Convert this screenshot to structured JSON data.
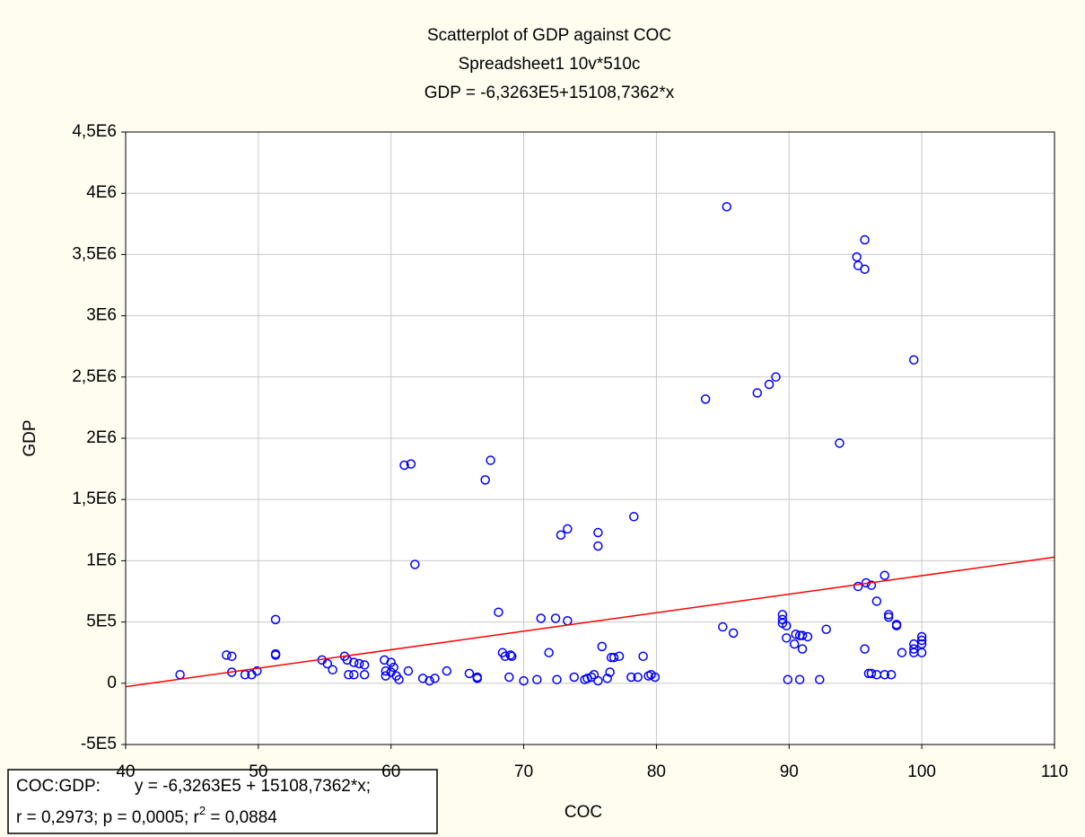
{
  "chart_data": {
    "type": "scatter",
    "title": "Scatterplot of GDP against COC",
    "subtitle": "Spreadsheet1 10v*510c",
    "equation": "GDP = -6,3263E5+15108,7362*x",
    "x_label": "COC",
    "y_label": "GDP",
    "xlim": [
      40,
      110
    ],
    "xticks": [
      40,
      50,
      60,
      70,
      80,
      90,
      100,
      110
    ],
    "ylim": [
      -500000,
      4500000
    ],
    "yticks": [
      {
        "value": -500000,
        "label": "-5E5"
      },
      0,
      {
        "value": 500000,
        "label": "5E5"
      },
      {
        "value": 1000000,
        "label": "1E6"
      },
      {
        "value": 1500000,
        "label": "1,5E6"
      },
      {
        "value": 2000000,
        "label": "2E6"
      },
      {
        "value": 2500000,
        "label": "2,5E6"
      },
      {
        "value": 3000000,
        "label": "3E6"
      },
      {
        "value": 3500000,
        "label": "3,5E6"
      },
      {
        "value": 4000000,
        "label": "4E6"
      },
      {
        "value": 4500000,
        "label": "4,5E6"
      }
    ],
    "grid": true,
    "color": "#0000ff",
    "fit": {
      "intercept": -632630,
      "slope": 15108.7362,
      "color": "#ff0000"
    },
    "stats_label": "COC:GDP:",
    "stats_equation": "y = -6,3263E5 + 15108,7362*x;",
    "stats_line": [
      "r = 0,2973; p = 0,0005; r",
      "2",
      " = 0,0884"
    ],
    "x": [
      44.1,
      47.6,
      48.0,
      48.0,
      49.0,
      49.5,
      49.9,
      51.3,
      51.3,
      51.3,
      54.8,
      55.2,
      55.6,
      56.5,
      56.7,
      56.8,
      57.2,
      57.2,
      57.6,
      58.0,
      58.0,
      59.5,
      59.6,
      59.6,
      60.0,
      60.0,
      60.2,
      60.4,
      60.6,
      61.0,
      61.5,
      61.3,
      61.8,
      62.4,
      62.9,
      63.3,
      64.2,
      65.9,
      66.5,
      66.5,
      67.1,
      67.5,
      68.1,
      68.4,
      68.6,
      68.9,
      69.0,
      69.1,
      70.0,
      71.0,
      71.3,
      71.9,
      72.4,
      72.5,
      72.8,
      73.3,
      73.3,
      73.8,
      74.6,
      74.8,
      75.1,
      75.3,
      75.6,
      75.6,
      75.6,
      75.9,
      76.3,
      76.5,
      76.6,
      76.8,
      77.2,
      78.1,
      78.3,
      78.6,
      79.0,
      79.4,
      79.6,
      79.9,
      83.7,
      85.0,
      85.3,
      85.8,
      87.6,
      88.5,
      89.0,
      89.5,
      89.5,
      89.5,
      89.8,
      89.8,
      89.9,
      90.4,
      90.5,
      90.8,
      90.8,
      91.0,
      91.0,
      91.4,
      92.3,
      92.8,
      93.8,
      95.1,
      95.2,
      95.2,
      95.7,
      95.7,
      95.7,
      95.8,
      96.0,
      96.2,
      96.2,
      96.6,
      96.6,
      97.2,
      97.2,
      97.5,
      97.5,
      97.7,
      98.1,
      98.1,
      98.5,
      99.4,
      99.4,
      99.4,
      99.4,
      100,
      100,
      100,
      100
    ],
    "values": [
      70000,
      230000,
      220000,
      90000,
      70000,
      70000,
      100000,
      520000,
      240000,
      230000,
      190000,
      160000,
      110000,
      220000,
      190000,
      70000,
      70000,
      170000,
      160000,
      150000,
      70000,
      190000,
      100000,
      60000,
      170000,
      90000,
      130000,
      60000,
      30000,
      1780000,
      1790000,
      100000,
      970000,
      40000,
      20000,
      40000,
      100000,
      80000,
      40000,
      50000,
      1660000,
      1820000,
      580000,
      250000,
      220000,
      50000,
      230000,
      220000,
      20000,
      30000,
      530000,
      250000,
      530000,
      30000,
      1210000,
      1260000,
      510000,
      50000,
      30000,
      40000,
      50000,
      70000,
      20000,
      1230000,
      1120000,
      300000,
      40000,
      90000,
      210000,
      210000,
      220000,
      50000,
      1360000,
      50000,
      220000,
      60000,
      70000,
      50000,
      2320000,
      460000,
      3890000,
      410000,
      2370000,
      2440000,
      2500000,
      560000,
      520000,
      490000,
      470000,
      370000,
      30000,
      320000,
      400000,
      390000,
      30000,
      280000,
      390000,
      380000,
      30000,
      440000,
      1960000,
      3480000,
      3410000,
      790000,
      3620000,
      3380000,
      280000,
      820000,
      80000,
      80000,
      800000,
      670000,
      70000,
      880000,
      70000,
      560000,
      540000,
      70000,
      480000,
      470000,
      250000,
      2640000,
      320000,
      280000,
      250000,
      380000,
      350000,
      320000,
      250000
    ]
  }
}
